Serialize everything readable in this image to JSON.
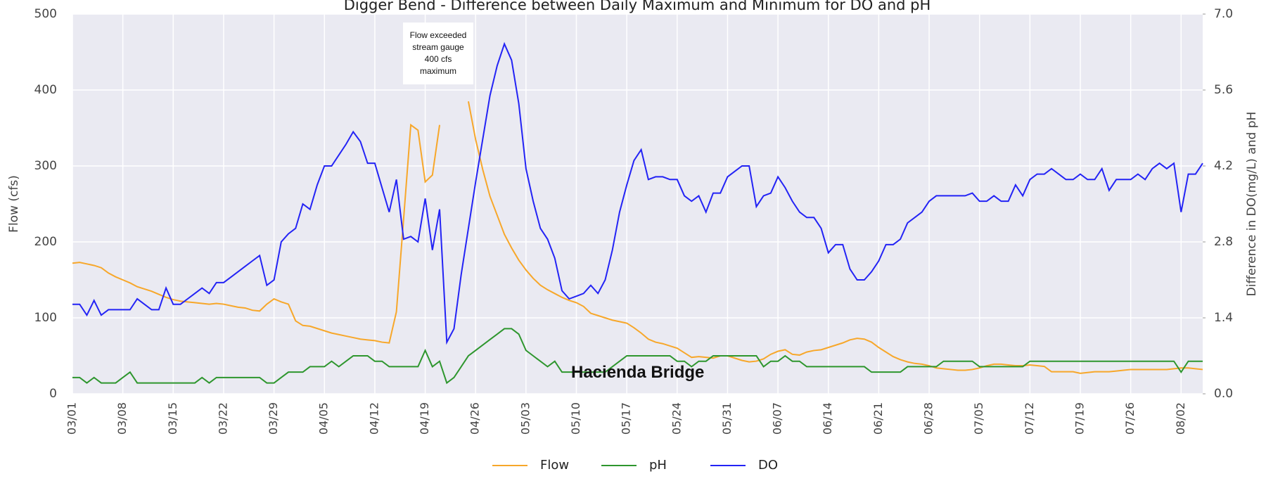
{
  "chart_data": {
    "type": "line",
    "title": "Digger Bend - Difference between Daily Maximum and Minimum for DO and pH",
    "y_label": "Flow (cfs)",
    "y2_label": "Difference in DO(mg/L) and pH",
    "annotations": [
      "Flow exceeded stream gauge 400 cfs maximum",
      "Hacienda Bridge"
    ],
    "x": [
      "03/01",
      "03/02",
      "03/03",
      "03/04",
      "03/05",
      "03/06",
      "03/07",
      "03/08",
      "03/09",
      "03/10",
      "03/11",
      "03/12",
      "03/13",
      "03/14",
      "03/15",
      "03/16",
      "03/17",
      "03/18",
      "03/19",
      "03/20",
      "03/21",
      "03/22",
      "03/23",
      "03/24",
      "03/25",
      "03/26",
      "03/27",
      "03/28",
      "03/29",
      "03/30",
      "03/31",
      "04/01",
      "04/02",
      "04/03",
      "04/04",
      "04/05",
      "04/06",
      "04/07",
      "04/08",
      "04/09",
      "04/10",
      "04/11",
      "04/12",
      "04/13",
      "04/14",
      "04/15",
      "04/16",
      "04/17",
      "04/18",
      "04/19",
      "04/20",
      "04/21",
      "04/22",
      "04/23",
      "04/24",
      "04/25",
      "04/26",
      "04/27",
      "04/28",
      "04/29",
      "04/30",
      "05/01",
      "05/02",
      "05/03",
      "05/04",
      "05/05",
      "05/06",
      "05/07",
      "05/08",
      "05/09",
      "05/10",
      "05/11",
      "05/12",
      "05/13",
      "05/14",
      "05/15",
      "05/16",
      "05/17",
      "05/18",
      "05/19",
      "05/20",
      "05/21",
      "05/22",
      "05/23",
      "05/24",
      "05/25",
      "05/26",
      "05/27",
      "05/28",
      "05/29",
      "05/30",
      "05/31",
      "06/01",
      "06/02",
      "06/03",
      "06/04",
      "06/05",
      "06/06",
      "06/07",
      "06/08",
      "06/09",
      "06/10",
      "06/11",
      "06/12",
      "06/13",
      "06/14",
      "06/15",
      "06/16",
      "06/17",
      "06/18",
      "06/19",
      "06/20",
      "06/21",
      "06/22",
      "06/23",
      "06/24",
      "06/25",
      "06/26",
      "06/27",
      "06/28",
      "06/29",
      "06/30",
      "07/01",
      "07/02",
      "07/03",
      "07/04",
      "07/05",
      "07/06",
      "07/07",
      "07/08",
      "07/09",
      "07/10",
      "07/11",
      "07/12",
      "07/13",
      "07/14",
      "07/15",
      "07/16",
      "07/17",
      "07/18",
      "07/19",
      "07/20",
      "07/21",
      "07/22",
      "07/23",
      "07/24",
      "07/25",
      "07/26",
      "07/27",
      "07/28",
      "07/29",
      "07/30",
      "07/31",
      "08/01",
      "08/02",
      "08/03",
      "08/04",
      "08/05"
    ],
    "xticks": [
      "03/01",
      "03/08",
      "03/15",
      "03/22",
      "03/29",
      "04/05",
      "04/12",
      "04/19",
      "04/26",
      "05/03",
      "05/10",
      "05/17",
      "05/24",
      "05/31",
      "06/07",
      "06/14",
      "06/21",
      "06/28",
      "07/05",
      "07/12",
      "07/19",
      "07/26",
      "08/02"
    ],
    "ylim": [
      0,
      500
    ],
    "yticks": [
      0,
      100,
      200,
      300,
      400,
      500
    ],
    "y2lim": [
      0,
      7
    ],
    "y2ticks": [
      {
        "value": 0,
        "label": "0.0"
      },
      {
        "value": 1.4,
        "label": "1.4"
      },
      {
        "value": 2.8,
        "label": "2.8"
      },
      {
        "value": 4.2,
        "label": "4.2"
      },
      {
        "value": 5.6,
        "label": "5.6"
      },
      {
        "value": 7,
        "label": "7.0"
      }
    ],
    "grid": true,
    "legend": "bottom",
    "series": [
      {
        "name": "Flow",
        "color": "#f7a72a",
        "values": [
          172,
          173,
          171,
          169,
          166,
          159,
          154,
          150,
          146,
          141,
          138,
          135,
          131,
          127,
          124,
          122,
          121,
          120,
          119,
          118,
          119,
          118,
          116,
          114,
          113,
          110,
          109,
          118,
          125,
          121,
          118,
          96,
          90,
          89,
          86,
          83,
          80,
          78,
          76,
          74,
          72,
          71,
          70,
          68,
          67,
          108,
          230,
          354,
          347,
          279,
          288,
          354,
          null,
          null,
          null,
          385,
          335,
          295,
          260,
          235,
          210,
          192,
          176,
          163,
          152,
          143,
          137,
          132,
          127,
          123,
          120,
          115,
          106,
          103,
          100,
          97,
          95,
          93,
          87,
          80,
          72,
          68,
          66,
          63,
          60,
          54,
          48,
          49,
          48,
          47,
          50,
          50,
          47,
          44,
          42,
          43,
          46,
          52,
          56,
          58,
          52,
          51,
          55,
          57,
          58,
          61,
          64,
          67,
          71,
          73,
          72,
          68,
          61,
          55,
          49,
          45,
          42,
          40,
          39,
          37,
          34,
          33,
          32,
          31,
          31,
          32,
          34,
          37,
          39,
          39,
          38,
          37,
          37,
          38,
          37,
          36,
          29,
          29,
          29,
          29,
          27,
          28,
          29,
          29,
          29,
          30,
          31,
          32,
          32,
          32,
          32,
          32,
          32,
          33,
          34,
          34,
          33,
          32
        ]
      },
      {
        "name": "pH",
        "color": "#2e962e",
        "axis": "y2",
        "values": [
          0.3,
          0.3,
          0.2,
          0.3,
          0.2,
          0.2,
          0.2,
          0.3,
          0.4,
          0.2,
          0.2,
          0.2,
          0.2,
          0.2,
          0.2,
          0.2,
          0.2,
          0.2,
          0.3,
          0.2,
          0.3,
          0.3,
          0.3,
          0.3,
          0.3,
          0.3,
          0.3,
          0.2,
          0.2,
          0.3,
          0.4,
          0.4,
          0.4,
          0.5,
          0.5,
          0.5,
          0.6,
          0.5,
          0.6,
          0.7,
          0.7,
          0.7,
          0.6,
          0.6,
          0.5,
          0.5,
          0.5,
          0.5,
          0.5,
          0.8,
          0.5,
          0.6,
          0.2,
          0.3,
          0.5,
          0.7,
          0.8,
          0.9,
          1.0,
          1.1,
          1.2,
          1.2,
          1.1,
          0.8,
          0.7,
          0.6,
          0.5,
          0.6,
          0.4,
          0.4,
          0.4,
          0.4,
          0.4,
          0.4,
          0.4,
          0.5,
          0.6,
          0.7,
          0.7,
          0.7,
          0.7,
          0.7,
          0.7,
          0.7,
          0.6,
          0.6,
          0.5,
          0.6,
          0.6,
          0.7,
          0.7,
          0.7,
          0.7,
          0.7,
          0.7,
          0.7,
          0.5,
          0.6,
          0.6,
          0.7,
          0.6,
          0.6,
          0.5,
          0.5,
          0.5,
          0.5,
          0.5,
          0.5,
          0.5,
          0.5,
          0.5,
          0.4,
          0.4,
          0.4,
          0.4,
          0.4,
          0.5,
          0.5,
          0.5,
          0.5,
          0.5,
          0.6,
          0.6,
          0.6,
          0.6,
          0.6,
          0.5,
          0.5,
          0.5,
          0.5,
          0.5,
          0.5,
          0.5,
          0.6,
          0.6,
          0.6,
          0.6,
          0.6,
          0.6,
          0.6,
          0.6,
          0.6,
          0.6,
          0.6,
          0.6,
          0.6,
          0.6,
          0.6,
          0.6,
          0.6,
          0.6,
          0.6,
          0.6,
          0.6,
          0.4,
          0.6,
          0.6,
          0.6
        ]
      },
      {
        "name": "DO",
        "color": "#2323f5",
        "axis": "y2",
        "values": [
          1.65,
          1.65,
          1.45,
          1.72,
          1.45,
          1.55,
          1.55,
          1.55,
          1.55,
          1.75,
          1.65,
          1.55,
          1.55,
          1.95,
          1.65,
          1.65,
          1.75,
          1.85,
          1.95,
          1.85,
          2.05,
          2.05,
          2.15,
          2.25,
          2.35,
          2.45,
          2.55,
          2.0,
          2.1,
          2.8,
          2.95,
          3.05,
          3.5,
          3.4,
          3.85,
          4.2,
          4.2,
          4.4,
          4.6,
          4.83,
          4.65,
          4.25,
          4.25,
          3.8,
          3.35,
          3.95,
          2.85,
          2.9,
          2.8,
          3.6,
          2.65,
          3.4,
          0.95,
          1.2,
          2.2,
          3.05,
          3.9,
          4.7,
          5.5,
          6.05,
          6.45,
          6.15,
          5.35,
          4.15,
          3.55,
          3.05,
          2.85,
          2.5,
          1.9,
          1.75,
          1.8,
          1.85,
          2.0,
          1.85,
          2.1,
          2.65,
          3.35,
          3.85,
          4.3,
          4.5,
          3.95,
          4.0,
          4.0,
          3.95,
          3.95,
          3.65,
          3.55,
          3.65,
          3.35,
          3.7,
          3.7,
          4.0,
          4.1,
          4.2,
          4.2,
          3.45,
          3.65,
          3.7,
          4.0,
          3.8,
          3.55,
          3.35,
          3.25,
          3.25,
          3.05,
          2.6,
          2.75,
          2.75,
          2.3,
          2.1,
          2.1,
          2.25,
          2.45,
          2.75,
          2.75,
          2.85,
          3.15,
          3.25,
          3.35,
          3.55,
          3.65,
          3.65,
          3.65,
          3.65,
          3.65,
          3.7,
          3.55,
          3.55,
          3.65,
          3.55,
          3.55,
          3.85,
          3.65,
          3.95,
          4.05,
          4.05,
          4.15,
          4.05,
          3.95,
          3.95,
          4.05,
          3.95,
          3.95,
          4.15,
          3.75,
          3.95,
          3.95,
          3.95,
          4.05,
          3.95,
          4.15,
          4.25,
          4.15,
          4.25,
          3.35,
          4.05,
          4.05,
          4.25
        ]
      }
    ]
  }
}
